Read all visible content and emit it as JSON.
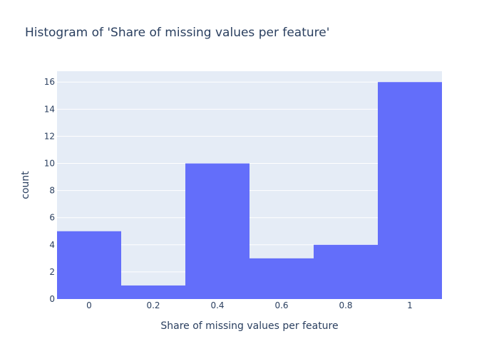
{
  "chart_data": {
    "type": "bar",
    "title": "Histogram of 'Share of missing values per feature'",
    "xlabel": "Share of missing values per feature",
    "ylabel": "count",
    "bins": [
      {
        "start": -0.1,
        "end": 0.1,
        "count": 5
      },
      {
        "start": 0.1,
        "end": 0.3,
        "count": 1
      },
      {
        "start": 0.3,
        "end": 0.5,
        "count": 10
      },
      {
        "start": 0.5,
        "end": 0.7,
        "count": 3
      },
      {
        "start": 0.7,
        "end": 0.9,
        "count": 4
      },
      {
        "start": 0.9,
        "end": 1.1,
        "count": 16
      }
    ],
    "xlim": [
      -0.1,
      1.1
    ],
    "ylim": [
      0,
      16.8
    ],
    "x_ticks": [
      0,
      0.2,
      0.4,
      0.6,
      0.8,
      1
    ],
    "x_tick_labels": [
      "0",
      "0.2",
      "0.4",
      "0.6",
      "0.8",
      "1"
    ],
    "y_ticks": [
      0,
      2,
      4,
      6,
      8,
      10,
      12,
      14,
      16
    ],
    "y_tick_labels": [
      "0",
      "2",
      "4",
      "6",
      "8",
      "10",
      "12",
      "14",
      "16"
    ],
    "grid": true,
    "colors": {
      "bar": "#636efa",
      "plot_background": "#e5ecf6",
      "grid": "#ffffff",
      "text": "#2a3f5f"
    }
  }
}
